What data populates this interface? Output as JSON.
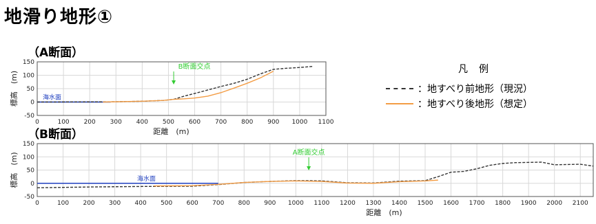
{
  "page_title": "地滑り地形①",
  "legend": {
    "title": "凡　例",
    "items": [
      {
        "label": "：地すべり前地形（現況）",
        "color": "#333333",
        "style": "dashed"
      },
      {
        "label": "：地すべり後地形（想定）",
        "color": "#f39c44",
        "style": "solid"
      }
    ]
  },
  "chart_data": [
    {
      "type": "line",
      "title": "（A断面）",
      "xlabel": "距離　(m)",
      "ylabel": "標高　(m)",
      "xlim": [
        0,
        1100
      ],
      "ylim": [
        -50,
        150
      ],
      "xticks": [
        0,
        100,
        200,
        300,
        400,
        500,
        600,
        700,
        800,
        900,
        1000,
        1100
      ],
      "yticks": [
        -50,
        0,
        50,
        100,
        150
      ],
      "grid": true,
      "sea_level": {
        "label": "海水面",
        "value": 0,
        "x": [
          0,
          280
        ],
        "color": "#1f3fbf"
      },
      "annotation": {
        "label": "B断面交点",
        "x": 520,
        "color": "#33cc33"
      },
      "series": [
        {
          "style": "dashed",
          "color": "#333333",
          "x": [
            0,
            300,
            400,
            480,
            520,
            560,
            600,
            650,
            700,
            750,
            800,
            850,
            900,
            950,
            1000,
            1050
          ],
          "y": [
            0,
            1,
            3,
            6,
            10,
            22,
            32,
            45,
            58,
            70,
            85,
            105,
            122,
            126,
            129,
            133
          ]
        },
        {
          "style": "solid",
          "color": "#f39c44",
          "x": [
            250,
            400,
            480,
            520,
            560,
            600,
            650,
            700,
            750,
            800,
            850,
            900
          ],
          "y": [
            0,
            3,
            6,
            10,
            12,
            15,
            22,
            35,
            52,
            70,
            90,
            115
          ]
        }
      ]
    },
    {
      "type": "line",
      "title": "（B断面）",
      "xlabel": "距離　(m)",
      "ylabel": "標高　(m)",
      "xlim": [
        0,
        2150
      ],
      "ylim": [
        -50,
        150
      ],
      "xticks": [
        0,
        100,
        200,
        300,
        400,
        500,
        600,
        700,
        800,
        900,
        1000,
        1100,
        1200,
        1300,
        1400,
        1500,
        1600,
        1700,
        1800,
        1900,
        2000,
        2100
      ],
      "yticks": [
        -50,
        0,
        50,
        100,
        150
      ],
      "grid": true,
      "sea_level": {
        "label": "海水面",
        "value": 0,
        "x": [
          0,
          700
        ],
        "color": "#1f3fbf"
      },
      "annotation": {
        "label": "A断面交点",
        "x": 1050,
        "color": "#33cc33"
      },
      "series": [
        {
          "style": "dashed",
          "color": "#333333",
          "x": [
            0,
            200,
            400,
            600,
            700,
            800,
            900,
            1000,
            1050,
            1100,
            1200,
            1300,
            1400,
            1500,
            1550,
            1600,
            1650,
            1700,
            1750,
            1800,
            1850,
            1950,
            2000,
            2100,
            2150
          ],
          "y": [
            -17,
            -14,
            -12,
            -11,
            -5,
            3,
            7,
            10,
            10,
            9,
            2,
            1,
            8,
            10,
            25,
            42,
            45,
            55,
            68,
            75,
            78,
            80,
            70,
            72,
            65
          ]
        },
        {
          "style": "solid",
          "color": "#f39c44",
          "x": [
            450,
            600,
            700,
            800,
            900,
            1000,
            1050,
            1100,
            1200,
            1300,
            1400,
            1500,
            1550
          ],
          "y": [
            -10,
            -9,
            -4,
            3,
            7,
            9,
            8,
            7,
            1,
            0,
            6,
            9,
            12
          ]
        }
      ]
    }
  ]
}
